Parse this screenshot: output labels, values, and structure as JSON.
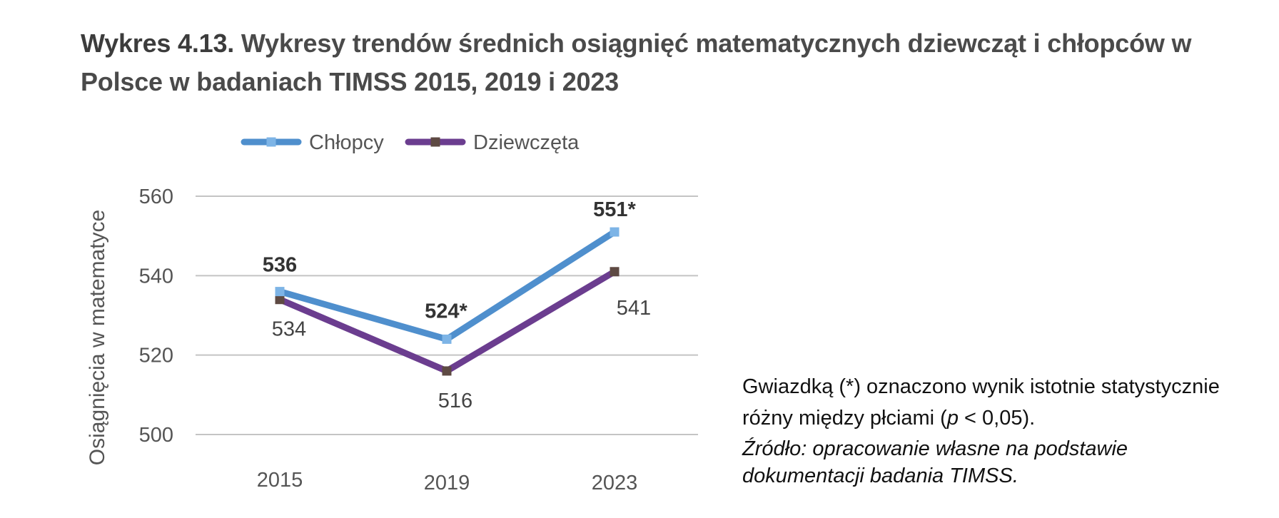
{
  "title": {
    "number": "Wykres 4.13.",
    "text": "Wykresy trendów średnich osiągnięć matematycznych dziewcząt i chłopców w Polsce w badaniach TIMSS 2015, 2019 i 2023"
  },
  "note": {
    "line_before_p": "Gwiazdką (*) oznaczono wynik istotnie statystycznie różny między płciami (",
    "p_symbol": "p",
    "line_after_p": " < 0,05).",
    "source": "Źródło: opracowanie własne na podstawie dokumentacji badania TIMSS."
  },
  "chart_data": {
    "type": "line",
    "x": [
      "2015",
      "2019",
      "2023"
    ],
    "ylabel": "Osiągnięcia w matematyce",
    "xlabel": "",
    "ylim": [
      500,
      560
    ],
    "yticks": [
      "500",
      "520",
      "540",
      "560"
    ],
    "grid": true,
    "legend_position": "top",
    "series": [
      {
        "name": "Chłopcy",
        "color": "#4f8fcd",
        "marker_color": "#7db4e6",
        "values": [
          536,
          524,
          551
        ],
        "labels": [
          "536",
          "524*",
          "551*"
        ],
        "label_bold": true
      },
      {
        "name": "Dziewczęta",
        "color": "#6b3d8f",
        "marker_color": "#5e4a43",
        "values": [
          534,
          516,
          541
        ],
        "labels": [
          "534",
          "516",
          "541"
        ],
        "label_bold": false
      }
    ]
  }
}
